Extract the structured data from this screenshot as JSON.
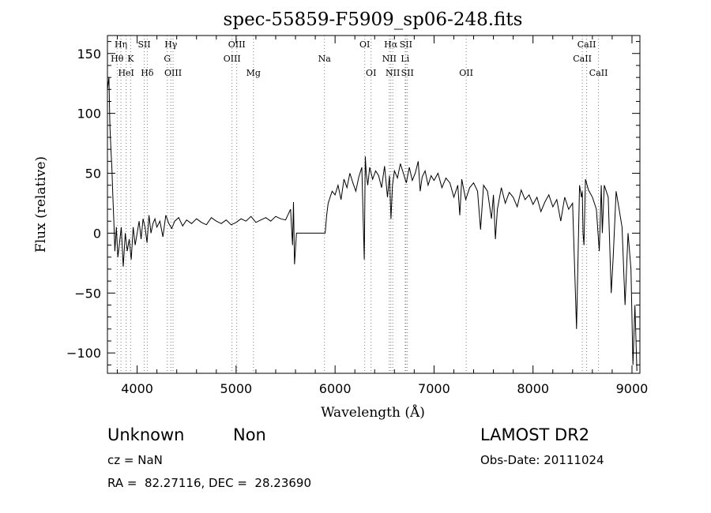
{
  "chart_data": {
    "type": "line",
    "title": "spec-55859-F5909_sp06-248.fits",
    "xlabel": "Wavelength (Å)",
    "ylabel": "Flux (relative)",
    "xlim": [
      3700,
      9080
    ],
    "ylim": [
      -117,
      165
    ],
    "x_ticks": [
      4000,
      5000,
      6000,
      7000,
      8000,
      9000
    ],
    "y_ticks": [
      -100,
      -50,
      0,
      50,
      100,
      150
    ],
    "y_tick_labels": [
      "−100",
      "−50",
      "0",
      "50",
      "100",
      "150"
    ],
    "grid": false,
    "series": [
      {
        "color": "#000000",
        "x": [
          3700,
          3715,
          3725,
          3735,
          3745,
          3755,
          3765,
          3775,
          3790,
          3805,
          3820,
          3840,
          3860,
          3880,
          3900,
          3920,
          3940,
          3960,
          3980,
          4000,
          4020,
          4040,
          4060,
          4080,
          4100,
          4120,
          4140,
          4160,
          4180,
          4200,
          4230,
          4260,
          4290,
          4320,
          4350,
          4380,
          4420,
          4460,
          4500,
          4550,
          4600,
          4650,
          4700,
          4750,
          4800,
          4850,
          4900,
          4950,
          5000,
          5050,
          5100,
          5150,
          5200,
          5250,
          5300,
          5350,
          5400,
          5450,
          5500,
          5550,
          5570,
          5580,
          5590,
          5610,
          5700,
          5800,
          5900,
          5915,
          5930,
          5950,
          5970,
          6000,
          6030,
          6060,
          6090,
          6120,
          6150,
          6180,
          6210,
          6240,
          6270,
          6295,
          6305,
          6315,
          6330,
          6350,
          6380,
          6410,
          6440,
          6470,
          6500,
          6530,
          6550,
          6565,
          6580,
          6600,
          6630,
          6660,
          6690,
          6720,
          6750,
          6780,
          6810,
          6840,
          6860,
          6880,
          6910,
          6940,
          6970,
          7000,
          7040,
          7080,
          7120,
          7160,
          7200,
          7240,
          7260,
          7280,
          7320,
          7360,
          7400,
          7440,
          7470,
          7500,
          7540,
          7580,
          7600,
          7620,
          7640,
          7680,
          7720,
          7760,
          7800,
          7840,
          7880,
          7920,
          7960,
          8000,
          8040,
          8080,
          8120,
          8160,
          8200,
          8240,
          8280,
          8320,
          8360,
          8400,
          8440,
          8470,
          8490,
          8498,
          8505,
          8515,
          8530,
          8560,
          8600,
          8640,
          8670,
          8690,
          8700,
          8720,
          8760,
          8790,
          8810,
          8840,
          8870,
          8900,
          8930,
          8960,
          8990,
          9010,
          9030,
          9050
        ],
        "y": [
          120,
          130,
          90,
          70,
          55,
          30,
          10,
          -15,
          5,
          -20,
          -10,
          5,
          -28,
          0,
          -15,
          -5,
          -22,
          5,
          -10,
          0,
          10,
          -5,
          12,
          5,
          -8,
          15,
          0,
          8,
          12,
          5,
          10,
          -3,
          15,
          8,
          4,
          10,
          13,
          6,
          11,
          8,
          12,
          9,
          7,
          13,
          10,
          8,
          11,
          7,
          9,
          12,
          10,
          14,
          9,
          11,
          13,
          10,
          14,
          12,
          11,
          20,
          -10,
          26,
          -26,
          0,
          0,
          0,
          0,
          15,
          25,
          30,
          35,
          32,
          40,
          28,
          45,
          38,
          50,
          42,
          35,
          47,
          55,
          -22,
          64,
          50,
          40,
          55,
          45,
          52,
          48,
          38,
          56,
          30,
          48,
          12,
          40,
          52,
          46,
          58,
          50,
          42,
          55,
          44,
          50,
          60,
          35,
          47,
          52,
          40,
          48,
          44,
          50,
          38,
          46,
          42,
          30,
          40,
          15,
          45,
          28,
          38,
          42,
          35,
          3,
          40,
          35,
          12,
          32,
          -5,
          20,
          38,
          25,
          34,
          30,
          22,
          36,
          28,
          32,
          24,
          30,
          18,
          26,
          32,
          22,
          28,
          10,
          30,
          20,
          25,
          -80,
          40,
          30,
          35,
          0,
          -10,
          45,
          36,
          30,
          20,
          -15,
          40,
          0,
          40,
          30,
          -50,
          -20,
          35,
          20,
          5,
          -60,
          0,
          -30,
          -110,
          -60,
          -115
        ]
      }
    ],
    "spectral_lines": [
      {
        "name": "Hη",
        "x": 3836,
        "row": 1
      },
      {
        "name": "Hθ",
        "x": 3798,
        "row": 2
      },
      {
        "name": "K",
        "x": 3934,
        "row": 2
      },
      {
        "name": "HeI",
        "x": 3889,
        "row": 3
      },
      {
        "name": "SII",
        "x": 4072,
        "row": 1
      },
      {
        "name": "Hδ",
        "x": 4102,
        "row": 3
      },
      {
        "name": "Hγ",
        "x": 4341,
        "row": 1
      },
      {
        "name": "G",
        "x": 4305,
        "row": 2
      },
      {
        "name": "OIII",
        "x": 4363,
        "row": 3
      },
      {
        "name": "OIII",
        "x": 5007,
        "row": 1
      },
      {
        "name": "OIII",
        "x": 4959,
        "row": 2
      },
      {
        "name": "Mg",
        "x": 5175,
        "row": 3
      },
      {
        "name": "Na",
        "x": 5893,
        "row": 2
      },
      {
        "name": "OI",
        "x": 6300,
        "row": 1
      },
      {
        "name": "OI",
        "x": 6364,
        "row": 3
      },
      {
        "name": "Hα",
        "x": 6563,
        "row": 1
      },
      {
        "name": "SII",
        "x": 6716,
        "row": 1
      },
      {
        "name": "NII",
        "x": 6548,
        "row": 2
      },
      {
        "name": "Li",
        "x": 6708,
        "row": 2
      },
      {
        "name": "NII",
        "x": 6583,
        "row": 3
      },
      {
        "name": "SII",
        "x": 6731,
        "row": 3
      },
      {
        "name": "OII",
        "x": 7325,
        "row": 3
      },
      {
        "name": "CaII",
        "x": 8542,
        "row": 1
      },
      {
        "name": "CaII",
        "x": 8498,
        "row": 2
      },
      {
        "name": "CaII",
        "x": 8662,
        "row": 3
      }
    ]
  },
  "info": {
    "class": "Unknown",
    "subclass": "Non",
    "survey": "LAMOST DR2",
    "cz": "cz = NaN",
    "obs_date": "Obs-Date: 20111024",
    "coords": "RA =  82.27116, DEC =  28.23690"
  }
}
